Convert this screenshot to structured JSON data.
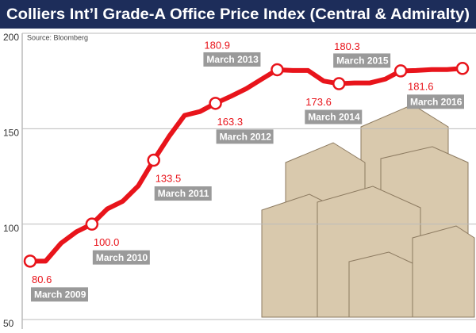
{
  "chart_data": {
    "type": "line",
    "title": "Colliers Int’l Grade-A Office Price Index (Central & Admiralty)",
    "source": "Source: Bloomberg",
    "categories": [
      "March 2009",
      null,
      null,
      null,
      "March 2010",
      null,
      null,
      null,
      "March 2011",
      null,
      null,
      null,
      "March 2012",
      null,
      null,
      null,
      "March 2013",
      null,
      null,
      null,
      "March 2014",
      null,
      null,
      null,
      "March 2015",
      null,
      null,
      null,
      "March 2016"
    ],
    "series": [
      {
        "color": "#e8141b",
        "values": [
          80.6,
          80.6,
          90,
          96,
          100,
          108,
          112,
          120,
          133.5,
          146,
          157,
          159,
          163.3,
          167,
          171,
          176,
          180.9,
          180.5,
          180.5,
          175,
          173.6,
          174,
          174,
          176,
          180.3,
          180.5,
          181,
          181,
          181.6
        ],
        "value_labels": [
          "80.6",
          null,
          null,
          null,
          "100.0",
          null,
          null,
          null,
          "133.5",
          null,
          null,
          null,
          "163.3",
          null,
          null,
          null,
          "180.9",
          null,
          null,
          null,
          "173.6",
          null,
          null,
          null,
          "180.3",
          null,
          null,
          null,
          "181.6"
        ]
      }
    ],
    "ylim": [
      50,
      200
    ],
    "yticks": [
      50,
      100,
      150,
      200
    ],
    "grid": true
  }
}
